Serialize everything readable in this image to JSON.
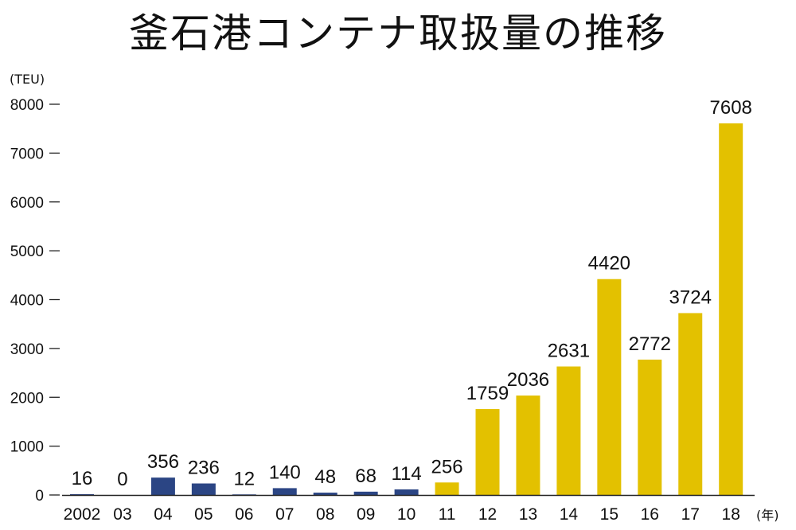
{
  "chart_data": {
    "type": "bar",
    "title": "釜石港コンテナ取扱量の推移",
    "ylabel": "(TEU)",
    "xlabel": "(年)",
    "ylim": [
      0,
      8000
    ],
    "yticks": [
      0,
      1000,
      2000,
      3000,
      4000,
      5000,
      6000,
      7000,
      8000
    ],
    "grid": false,
    "categories": [
      "2002",
      "03",
      "04",
      "05",
      "06",
      "07",
      "08",
      "09",
      "10",
      "11",
      "12",
      "13",
      "14",
      "15",
      "16",
      "17",
      "18"
    ],
    "values": [
      16,
      0,
      356,
      236,
      12,
      140,
      48,
      68,
      114,
      256,
      1759,
      2036,
      2631,
      4420,
      2772,
      3724,
      7608
    ],
    "data_labels": [
      "16",
      "0",
      "356",
      "236",
      "12",
      "140",
      "48",
      "68",
      "114",
      "256",
      "1759",
      "2036",
      "2631",
      "4420",
      "2772",
      "3724",
      "7608"
    ],
    "colors": {
      "early": "#2b4584",
      "late": "#e3c100",
      "axis": "#222222"
    },
    "bar_color_index": [
      "early",
      "early",
      "early",
      "early",
      "early",
      "early",
      "early",
      "early",
      "early",
      "late",
      "late",
      "late",
      "late",
      "late",
      "late",
      "late",
      "late"
    ]
  }
}
